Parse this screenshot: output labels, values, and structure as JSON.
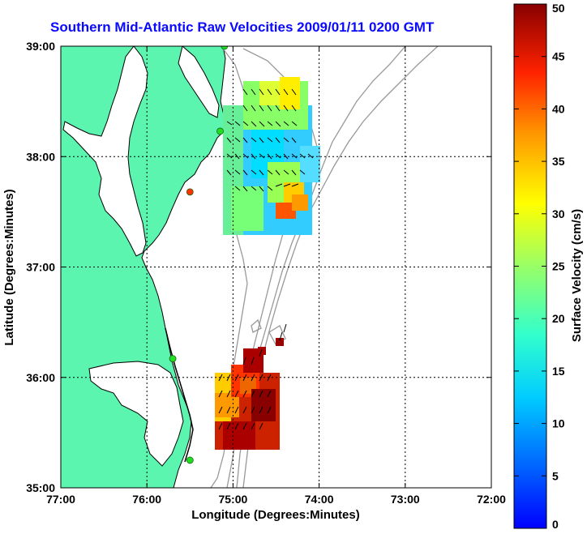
{
  "title": "Southern Mid-Atlantic Raw Velocities 2009/01/11 0200 GMT",
  "x_axis": {
    "label": "Longitude (Degrees:Minutes)",
    "ticks": [
      "77:00",
      "76:00",
      "75:00",
      "74:00",
      "73:00",
      "72:00"
    ]
  },
  "y_axis": {
    "label": "Latitude (Degrees:Minutes)",
    "ticks": [
      "39:00",
      "38:00",
      "37:00",
      "36:00",
      "35:00"
    ]
  },
  "colorbar": {
    "label": "Surface Velocity (cm/s)",
    "ticks": [
      "50",
      "45",
      "40",
      "35",
      "30",
      "25",
      "20",
      "15",
      "10",
      "5",
      "0"
    ],
    "min": 0,
    "max": 50,
    "colormap": "jet"
  },
  "colors": {
    "land": "#5cf5b0",
    "coastline": "#000000",
    "bathymetry": "#999999",
    "title": "#0a0aff",
    "station": "#22dd22",
    "station_alt": "#ff3300"
  },
  "chart_data": {
    "type": "map",
    "xlim": [
      -77,
      -72
    ],
    "ylim": [
      35,
      39
    ],
    "grid": true,
    "stations": [
      {
        "lon": -75.1,
        "lat": 39.0,
        "color": "station"
      },
      {
        "lon": -75.15,
        "lat": 38.23,
        "color": "station"
      },
      {
        "lon": -75.5,
        "lat": 37.68,
        "color": "station_alt"
      },
      {
        "lon": -75.7,
        "lat": 36.17,
        "color": "station"
      },
      {
        "lon": -75.5,
        "lat": 35.25,
        "color": "station"
      }
    ]
  }
}
